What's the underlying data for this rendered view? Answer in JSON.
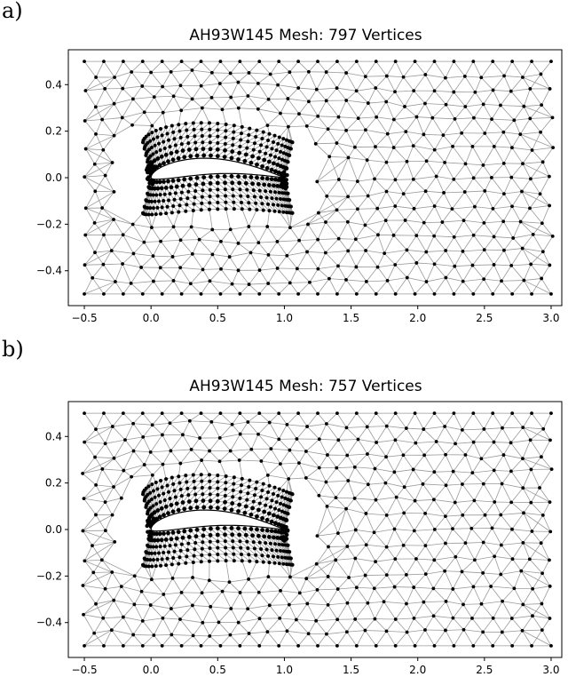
{
  "panels": [
    {
      "letter": "a)",
      "title": "AH93W145 Mesh: 797 Vertices"
    },
    {
      "letter": "b)",
      "title": "AH93W145 Mesh: 757 Vertices"
    }
  ],
  "chart_data": [
    {
      "type": "scatter",
      "title": "AH93W145 Mesh: 797 Vertices",
      "xlabel": "",
      "ylabel": "",
      "xlim": [
        -0.62,
        3.08
      ],
      "ylim": [
        -0.55,
        0.55
      ],
      "xticks": [
        "−0.5",
        "0.0",
        "0.5",
        "1.0",
        "1.5",
        "2.0",
        "2.5",
        "3.0"
      ],
      "xtick_values": [
        -0.5,
        0.0,
        0.5,
        1.0,
        1.5,
        2.0,
        2.5,
        3.0
      ],
      "yticks": [
        "0.4",
        "0.2",
        "0.0",
        "−0.2",
        "−0.4"
      ],
      "ytick_values": [
        0.4,
        0.2,
        0.0,
        -0.2,
        -0.4
      ],
      "domain_x": [
        -0.5,
        3.0
      ],
      "domain_y": [
        -0.5,
        0.5
      ],
      "airfoil_chord": [
        0.0,
        1.0
      ],
      "vertex_count": 797
    },
    {
      "type": "scatter",
      "title": "AH93W145 Mesh: 757 Vertices",
      "xlabel": "",
      "ylabel": "",
      "xlim": [
        -0.62,
        3.08
      ],
      "ylim": [
        -0.55,
        0.55
      ],
      "xticks": [
        "−0.5",
        "0.0",
        "0.5",
        "1.0",
        "1.5",
        "2.0",
        "2.5",
        "3.0"
      ],
      "xtick_values": [
        -0.5,
        0.0,
        0.5,
        1.0,
        1.5,
        2.0,
        2.5,
        3.0
      ],
      "yticks": [
        "0.4",
        "0.2",
        "0.0",
        "−0.2",
        "−0.4"
      ],
      "ytick_values": [
        0.4,
        0.2,
        0.0,
        -0.2,
        -0.4
      ],
      "domain_x": [
        -0.5,
        3.0
      ],
      "domain_y": [
        -0.5,
        0.5
      ],
      "airfoil_chord": [
        0.0,
        1.0
      ],
      "vertex_count": 757
    }
  ],
  "colors": {
    "edge": "#9a9a9a",
    "vertex": "#000000",
    "frame": "#000000"
  }
}
